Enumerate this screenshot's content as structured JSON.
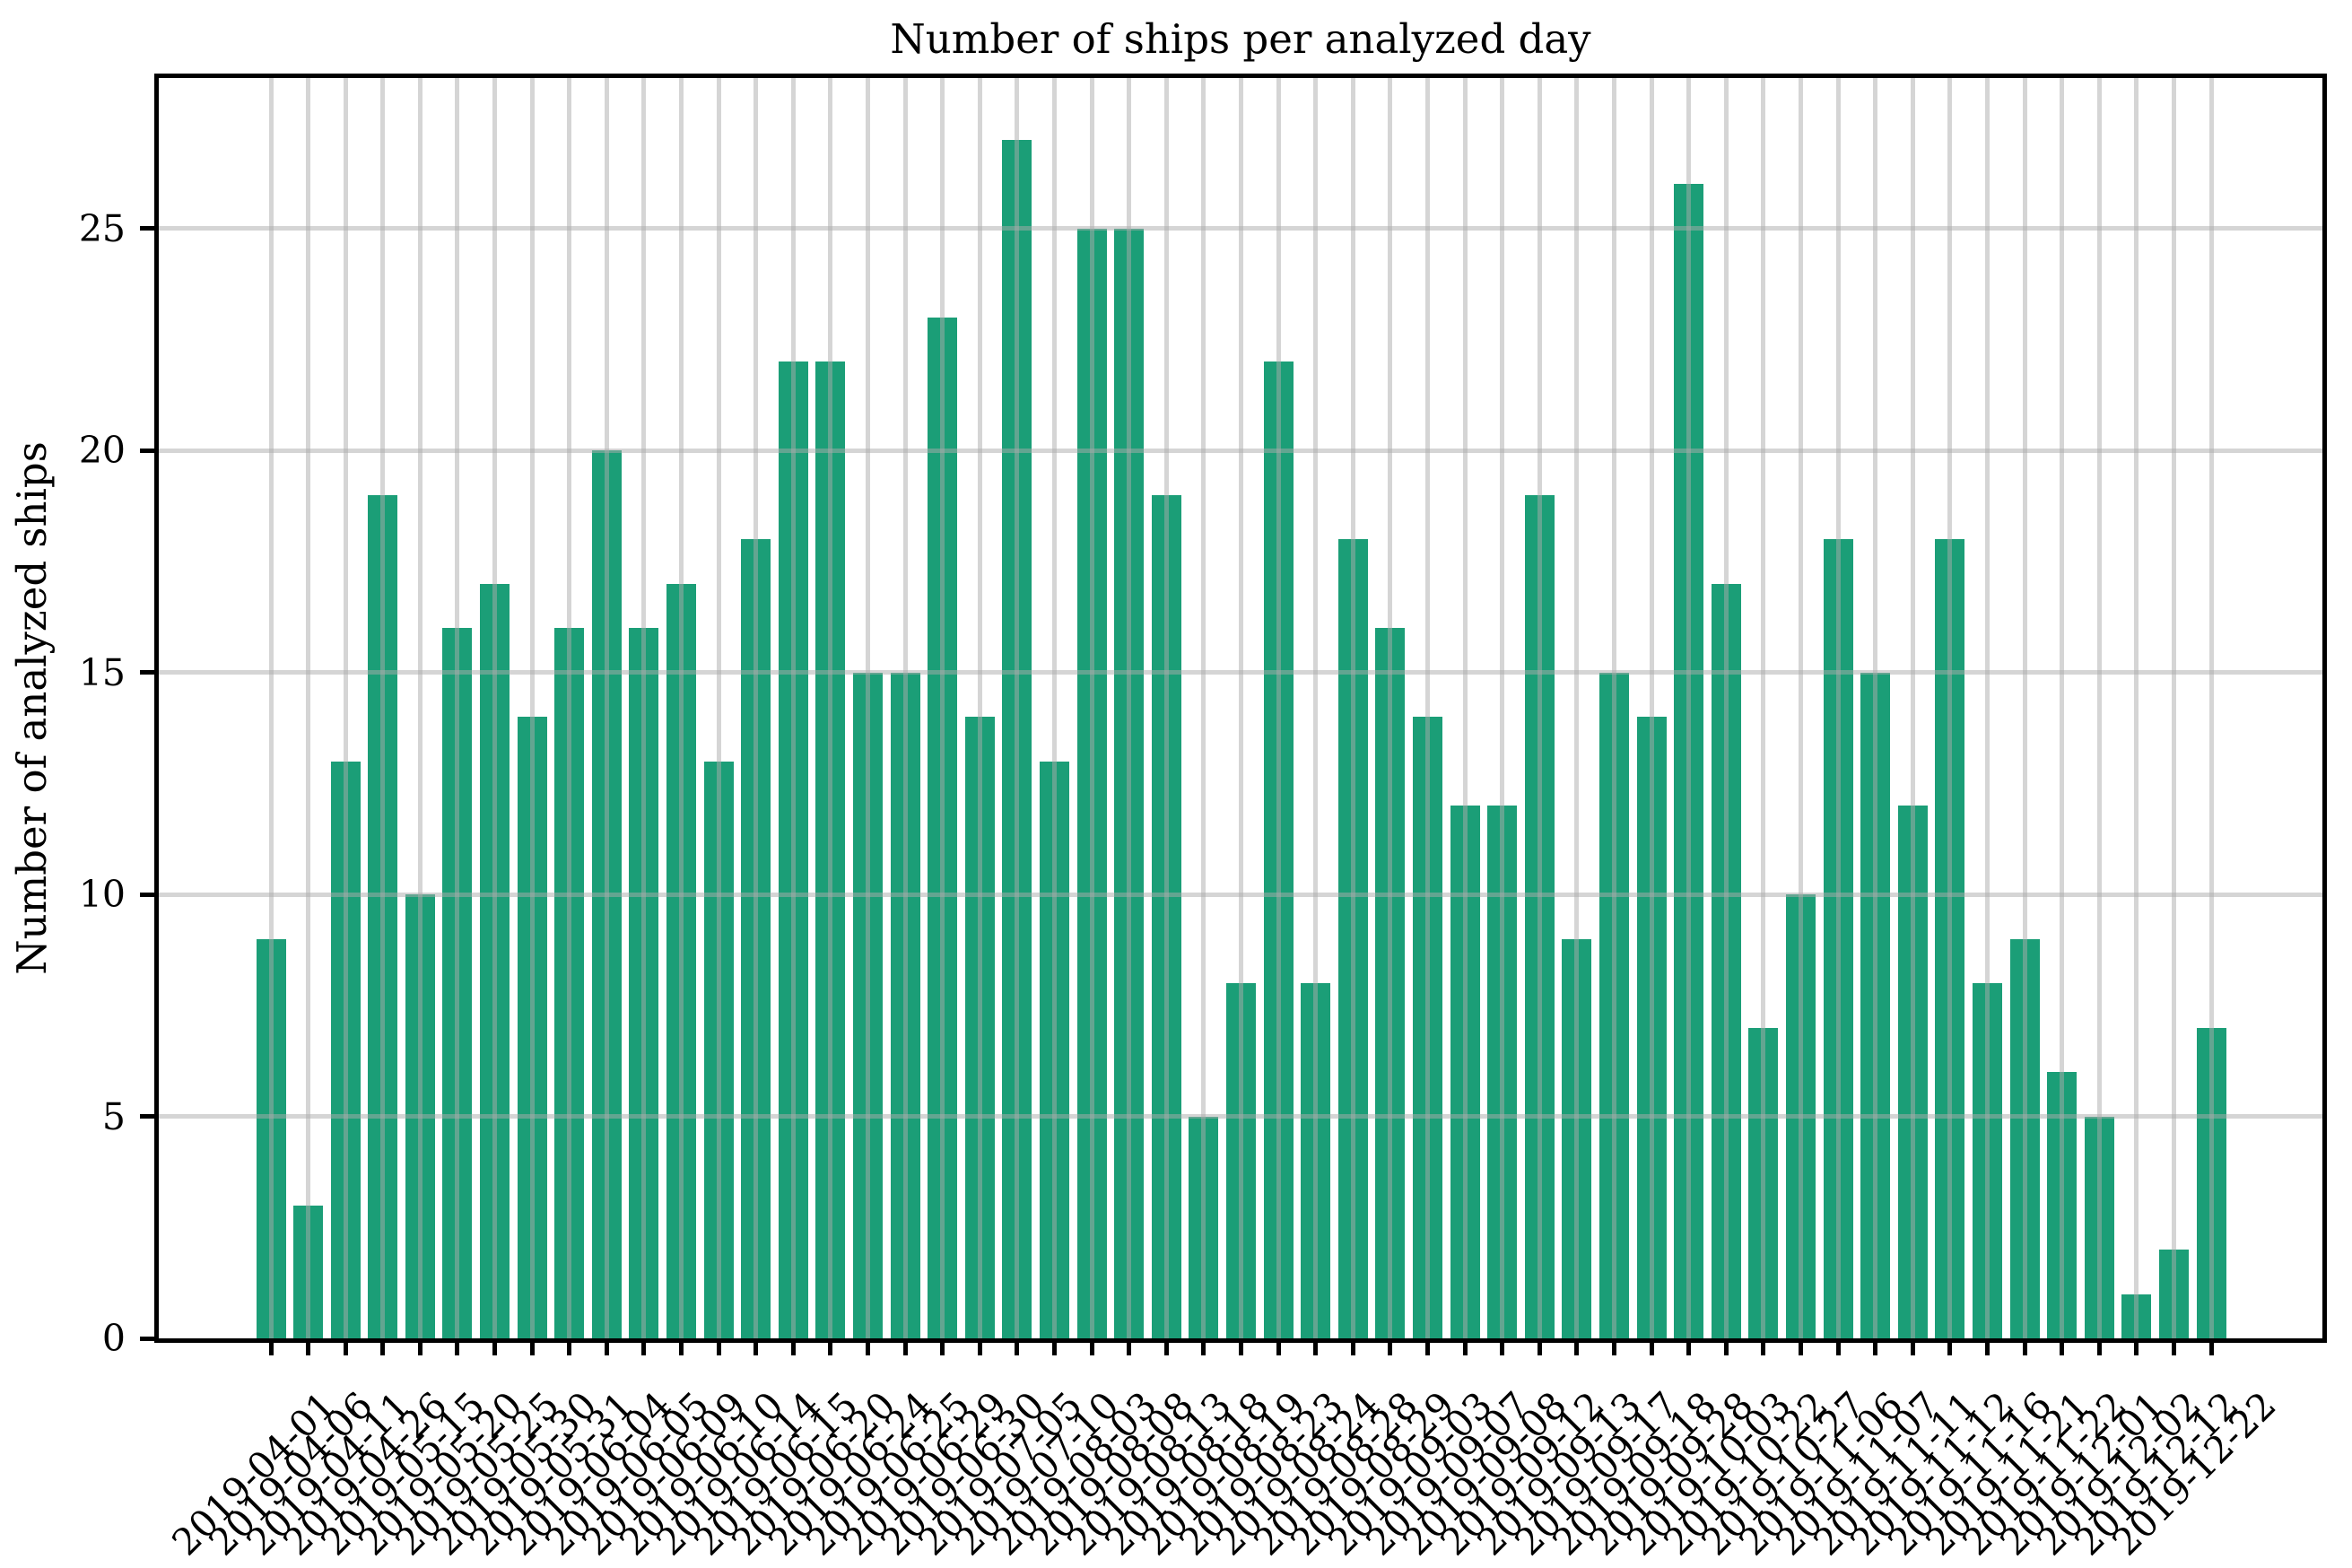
{
  "figure": {
    "kind": "matplotlib-style bar chart screenshot"
  },
  "chart_data": {
    "type": "bar",
    "title": "Number of ships per analyzed day",
    "xlabel": "",
    "ylabel": "Number of analyzed ships",
    "categories": [
      "2019-04-01",
      "2019-04-06",
      "2019-04-11",
      "2019-04-26",
      "2019-05-15",
      "2019-05-20",
      "2019-05-25",
      "2019-05-30",
      "2019-05-31",
      "2019-06-04",
      "2019-06-05",
      "2019-06-09",
      "2019-06-10",
      "2019-06-14",
      "2019-06-15",
      "2019-06-20",
      "2019-06-24",
      "2019-06-25",
      "2019-06-29",
      "2019-06-30",
      "2019-07-05",
      "2019-07-10",
      "2019-08-03",
      "2019-08-08",
      "2019-08-13",
      "2019-08-18",
      "2019-08-19",
      "2019-08-23",
      "2019-08-24",
      "2019-08-28",
      "2019-08-29",
      "2019-09-03",
      "2019-09-07",
      "2019-09-08",
      "2019-09-12",
      "2019-09-13",
      "2019-09-17",
      "2019-09-18",
      "2019-09-28",
      "2019-10-03",
      "2019-10-22",
      "2019-10-27",
      "2019-11-06",
      "2019-11-07",
      "2019-11-11",
      "2019-11-12",
      "2019-11-16",
      "2019-11-21",
      "2019-11-22",
      "2019-12-01",
      "2019-12-02",
      "2019-12-12",
      "2019-12-22"
    ],
    "values": [
      9,
      3,
      13,
      19,
      10,
      16,
      17,
      14,
      16,
      20,
      16,
      17,
      13,
      18,
      22,
      22,
      15,
      15,
      23,
      14,
      27,
      13,
      25,
      25,
      19,
      5,
      8,
      22,
      8,
      18,
      16,
      14,
      12,
      12,
      19,
      9,
      15,
      14,
      26,
      17,
      7,
      10,
      18,
      15,
      12,
      18,
      8,
      9,
      6,
      5,
      1,
      2,
      7
    ],
    "yticks": [
      0,
      5,
      10,
      15,
      20,
      25
    ],
    "ylim": [
      0,
      28.4
    ],
    "grid": true,
    "tick_label_rotation": 45,
    "bar_color": "#1b9e77",
    "gridline_color": "#d5d5d5",
    "legend": "none"
  }
}
